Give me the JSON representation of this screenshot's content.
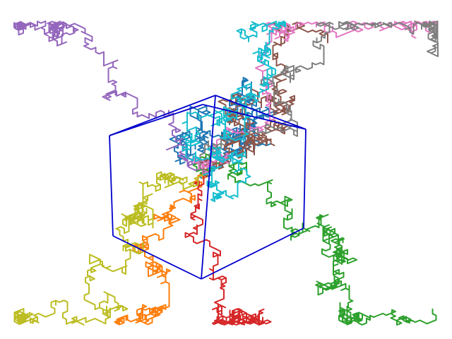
{
  "figure": {
    "type": "3d-random-walks",
    "box_color": "#0000cd",
    "grid": false,
    "axes_visible": false,
    "walk_count": 10,
    "palette": [
      "#1f77b4",
      "#ff7f0e",
      "#2ca02c",
      "#d62728",
      "#9467bd",
      "#8c564b",
      "#e377c2",
      "#7f7f7f",
      "#bcbd22",
      "#17becf"
    ]
  }
}
